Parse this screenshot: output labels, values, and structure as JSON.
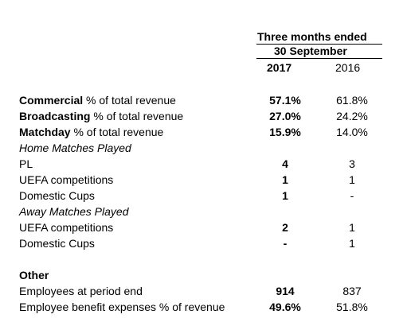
{
  "header": {
    "line1": "Three months ended",
    "line2": "30 September",
    "col_2017": "2017",
    "col_2016": "2016"
  },
  "rows": [
    {
      "bold": "Commercial",
      "label": " % of total revenue",
      "v2017": "57.1%",
      "v2016": "61.8%"
    },
    {
      "bold": "Broadcasting",
      "label": " % of total revenue",
      "v2017": "27.0%",
      "v2016": "24.2%"
    },
    {
      "bold": "Matchday",
      "label": " % of total revenue",
      "v2017": "15.9%",
      "v2016": "14.0%"
    },
    {
      "italic": "Home Matches Played"
    },
    {
      "label": "PL",
      "v2017": "4",
      "v2016": "3"
    },
    {
      "label": "UEFA competitions",
      "v2017": "1",
      "v2016": "1"
    },
    {
      "label": "Domestic Cups",
      "v2017": "1",
      "v2016": "-"
    },
    {
      "italic": "Away Matches Played"
    },
    {
      "label": "UEFA competitions",
      "v2017": "2",
      "v2016": "1"
    },
    {
      "label": "Domestic Cups",
      "v2017": "-",
      "v2016": "1"
    }
  ],
  "other": {
    "title": "Other",
    "rows": [
      {
        "label": "Employees at period end",
        "v2017": "914",
        "v2016": "837"
      },
      {
        "label": "Employee benefit expenses % of revenue",
        "v2017": "49.6%",
        "v2016": "51.8%"
      }
    ]
  }
}
